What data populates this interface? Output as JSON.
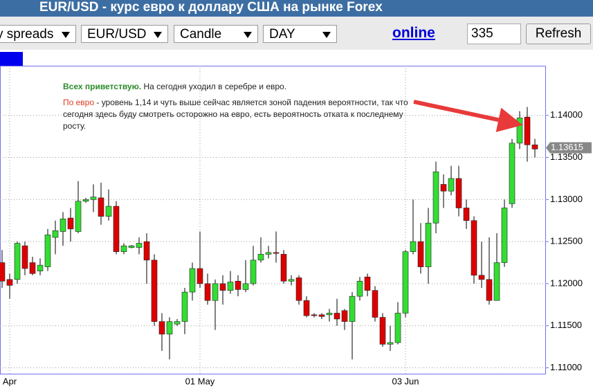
{
  "ui": {
    "title": "EUR/USD - курс евро к доллару США на рынке Forex",
    "selects": [
      "y spreads",
      "EUR/USD",
      "Candle",
      "DAY"
    ],
    "online": "online",
    "period": "335",
    "refresh": "Refresh"
  },
  "chart_data": {
    "type": "candlestick",
    "annotations": [
      {
        "lead": "Всех приветствую.",
        "text": " На сегодня уходил в серебре и евро."
      },
      {
        "lead": "По евро",
        "text": " - уровень 1,14 и чуть выше сейчас является зоной падения вероятности, так что сегодня здесь буду смотреть осторожно на евро, есть вероятность отката к последнему росту."
      }
    ],
    "categories": [
      null,
      "Apr",
      null,
      null,
      null,
      null,
      null,
      null,
      null,
      null,
      null,
      null,
      null,
      null,
      null,
      null,
      null,
      null,
      null,
      null,
      null,
      null,
      null,
      null,
      null,
      null,
      "01 May",
      null,
      null,
      null,
      null,
      null,
      null,
      null,
      null,
      null,
      null,
      null,
      null,
      null,
      null,
      null,
      null,
      null,
      null,
      null,
      null,
      null,
      null,
      null,
      null,
      null,
      null,
      "03 Jun",
      null,
      null,
      null,
      null,
      null,
      null,
      null,
      null,
      null,
      null,
      null,
      null,
      null,
      null,
      null,
      null,
      null
    ],
    "open": [
      1.1225,
      1.1205,
      1.1205,
      1.1245,
      1.1225,
      1.1215,
      1.122,
      1.1255,
      1.1262,
      1.1278,
      1.1262,
      1.1298,
      1.13,
      1.1302,
      1.128,
      1.1292,
      1.1238,
      1.1243,
      1.1243,
      1.125,
      1.1228,
      1.1155,
      1.114,
      1.1152,
      1.1155,
      1.119,
      1.1218,
      1.12,
      1.118,
      1.12,
      1.1192,
      1.1203,
      1.1193,
      1.12,
      1.1228,
      1.1235,
      1.1237,
      1.1235,
      1.1203,
      1.1207,
      1.118,
      1.1163,
      1.1163,
      1.1163,
      1.1165,
      1.1168,
      1.1155,
      1.1185,
      1.1208,
      1.1192,
      1.116,
      1.1128,
      1.113,
      1.1165,
      1.1238,
      1.125,
      1.122,
      1.1272,
      1.1318,
      1.131,
      1.1325,
      1.129,
      1.1275,
      1.121,
      1.1205,
      1.118,
      1.1225,
      1.1295,
      1.1367,
      1.1398,
      1.1365
    ],
    "high": [
      1.124,
      1.1212,
      1.125,
      1.125,
      1.1232,
      1.123,
      1.1265,
      1.1275,
      1.1285,
      1.129,
      1.1322,
      1.1302,
      1.1318,
      1.132,
      1.1312,
      1.1298,
      1.1248,
      1.1246,
      1.1255,
      1.126,
      1.1235,
      1.1165,
      1.116,
      1.1158,
      1.1195,
      1.1225,
      1.1262,
      1.1212,
      1.1205,
      1.121,
      1.1215,
      1.121,
      1.1228,
      1.1245,
      1.1255,
      1.1245,
      1.1262,
      1.124,
      1.121,
      1.121,
      1.1185,
      1.1165,
      1.1165,
      1.117,
      1.1182,
      1.117,
      1.119,
      1.1208,
      1.1212,
      1.1197,
      1.1165,
      1.115,
      1.1178,
      1.124,
      1.13,
      1.1272,
      1.129,
      1.1345,
      1.133,
      1.134,
      1.134,
      1.13,
      1.128,
      1.125,
      1.1255,
      1.126,
      1.13,
      1.1372,
      1.1405,
      1.141,
      1.1372
    ],
    "low": [
      1.1195,
      1.1182,
      1.12,
      1.121,
      1.121,
      1.121,
      1.1215,
      1.1235,
      1.1245,
      1.125,
      1.126,
      1.1296,
      1.1285,
      1.127,
      1.1275,
      1.1235,
      1.1235,
      1.1242,
      1.1235,
      1.12,
      1.115,
      1.112,
      1.111,
      1.115,
      1.114,
      1.118,
      1.1195,
      1.1175,
      1.1145,
      1.1175,
      1.1188,
      1.1185,
      1.119,
      1.1198,
      1.1225,
      1.123,
      1.1225,
      1.12,
      1.1198,
      1.1175,
      1.116,
      1.116,
      1.1158,
      1.1155,
      1.115,
      1.1145,
      1.111,
      1.118,
      1.1185,
      1.1155,
      1.1125,
      1.112,
      1.1128,
      1.116,
      1.1235,
      1.1212,
      1.12,
      1.126,
      1.129,
      1.1305,
      1.128,
      1.1265,
      1.12,
      1.1195,
      1.1175,
      1.118,
      1.122,
      1.129,
      1.136,
      1.1345,
      1.135
    ],
    "close": [
      1.1203,
      1.1198,
      1.1248,
      1.1218,
      1.1212,
      1.1222,
      1.1258,
      1.1263,
      1.1277,
      1.1265,
      1.1298,
      1.13,
      1.1303,
      1.128,
      1.1292,
      1.1238,
      1.1245,
      1.1245,
      1.1248,
      1.1228,
      1.1155,
      1.114,
      1.1155,
      1.1155,
      1.119,
      1.1218,
      1.12,
      1.118,
      1.12,
      1.1192,
      1.1202,
      1.1193,
      1.12,
      1.1228,
      1.1235,
      1.1237,
      1.1236,
      1.1203,
      1.1205,
      1.118,
      1.1162,
      1.1162,
      1.1161,
      1.1165,
      1.1158,
      1.1155,
      1.1185,
      1.1203,
      1.1192,
      1.116,
      1.1128,
      1.113,
      1.1165,
      1.1238,
      1.125,
      1.122,
      1.1272,
      1.1333,
      1.131,
      1.1325,
      1.129,
      1.1275,
      1.121,
      1.1205,
      1.118,
      1.1225,
      1.129,
      1.1367,
      1.1397,
      1.1365,
      1.136
    ],
    "up_color": "#33dd33",
    "down_color": "#dd0000",
    "last_price": 1.13615,
    "ylim": [
      1.1093,
      1.1459
    ],
    "yticks": [
      {
        "value": 1.11,
        "label": "1.11000"
      },
      {
        "value": 1.115,
        "label": "1.11500"
      },
      {
        "value": 1.12,
        "label": "1.12000"
      },
      {
        "value": 1.125,
        "label": "1.12500"
      },
      {
        "value": 1.13,
        "label": "1.13000"
      },
      {
        "value": 1.135,
        "label": "1.13500"
      },
      {
        "value": 1.14,
        "label": "1.14000"
      }
    ],
    "grid": true
  }
}
